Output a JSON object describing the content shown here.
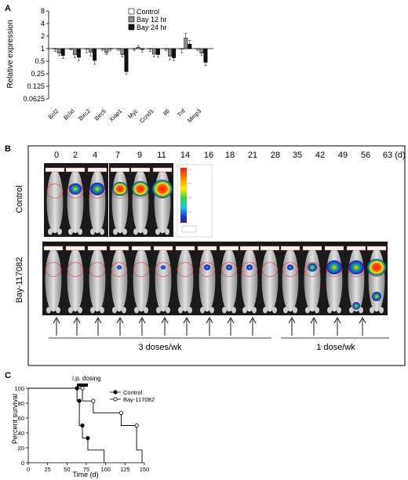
{
  "panels": {
    "a": "A",
    "b": "B",
    "c": "C"
  },
  "chart_data": [
    {
      "type": "bar",
      "ylabel": "Relative expression",
      "yscale": "log2",
      "ylim": [
        0.0625,
        8
      ],
      "yticks": [
        "8",
        "4",
        "2",
        "1",
        "0.5",
        "0.25",
        "0.125",
        "0.0625"
      ],
      "yticks_values": [
        8,
        4,
        2,
        1,
        0.5,
        0.25,
        0.125,
        0.0625
      ],
      "categories": [
        "Bcl2",
        "Bclxl",
        "Birc2",
        "Birc5",
        "Xiap1",
        "Myc",
        "Ccnd1",
        "Il6",
        "Tnf",
        "Mmp3"
      ],
      "series": [
        {
          "name": "Control",
          "color": "#ffffff",
          "values": [
            1,
            1,
            1,
            1,
            1,
            1,
            1,
            1,
            1,
            1
          ]
        },
        {
          "name": "Bay 12 hr",
          "color": "#8c8c8c",
          "values": [
            0.78,
            0.72,
            0.82,
            0.8,
            0.72,
            1.08,
            0.74,
            0.66,
            1.8,
            0.78
          ]
        },
        {
          "name": "Bay 24 hr",
          "color": "#111111",
          "values": [
            0.68,
            0.62,
            0.52,
            1.0,
            0.28,
            0.95,
            0.72,
            0.6,
            1.28,
            0.47
          ]
        }
      ],
      "errors": [
        [
          0.15,
          0.1,
          0.1
        ],
        [
          0.05,
          0.12,
          0.1
        ],
        [
          0.2,
          0.15,
          0.1
        ],
        [
          0.1,
          0.08,
          0.12
        ],
        [
          0.1,
          0.08,
          0.04
        ],
        [
          0.1,
          0.1,
          0.12
        ],
        [
          0.15,
          0.1,
          0.1
        ],
        [
          0.1,
          0.12,
          0.08
        ],
        [
          0.2,
          0.5,
          0.3
        ],
        [
          0.1,
          0.1,
          0.08
        ]
      ]
    },
    {
      "type": "line",
      "xlabel": "Time (d)",
      "ylabel": "Percent survival",
      "xlim": [
        0,
        150
      ],
      "ylim": [
        0,
        100
      ],
      "xticks": [
        "0",
        "25",
        "50",
        "75",
        "100",
        "125",
        "150"
      ],
      "xticks_values": [
        0,
        25,
        50,
        75,
        100,
        125,
        150
      ],
      "yticks": [
        "0",
        "20",
        "40",
        "60",
        "80",
        "100"
      ],
      "yticks_values": [
        0,
        20,
        40,
        60,
        80,
        100
      ],
      "annotation": "i.p. dosing",
      "dosing_range": [
        63,
        77
      ],
      "series": [
        {
          "name": "Control",
          "marker": "filled",
          "x": [
            0,
            63,
            66,
            70,
            77,
            98
          ],
          "y": [
            100,
            83,
            50,
            33,
            17,
            0
          ]
        },
        {
          "name": "Bay-117082",
          "marker": "open",
          "x": [
            0,
            70,
            84,
            120,
            140,
            147
          ],
          "y": [
            100,
            83,
            67,
            50,
            17,
            0
          ]
        }
      ]
    }
  ],
  "imaging": {
    "days": [
      "0",
      "2",
      "4",
      "7",
      "9",
      "11",
      "14",
      "16",
      "18",
      "21",
      "28",
      "35",
      "42",
      "49",
      "56",
      "63"
    ],
    "unit": "(d)",
    "row_labels": [
      "Control",
      "Bay-117082"
    ],
    "dosing": [
      "3 doses/wk",
      "1 dose/wk"
    ]
  }
}
